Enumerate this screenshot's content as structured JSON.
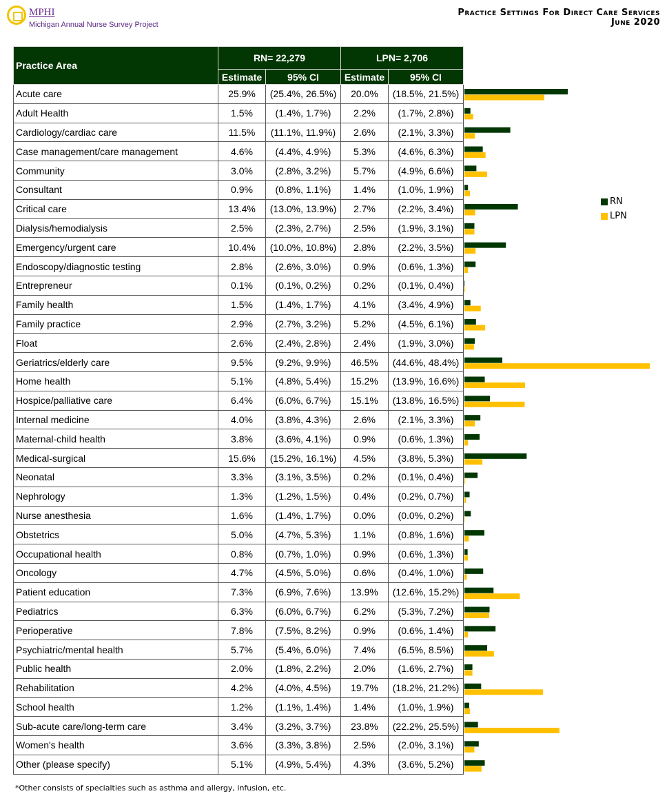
{
  "logo": {
    "brand": "MPHI",
    "subtitle": "Michigan Annual Nurse Survey Project"
  },
  "header": {
    "title": "Practice Settings For Direct Care Services",
    "date": "June 2020"
  },
  "colors": {
    "header_bg": "#023602",
    "RN": "#023602",
    "LPN": "#ffc000"
  },
  "table": {
    "col_practice": "Practice Area",
    "rn_group": "RN= 22,279",
    "lpn_group": "LPN= 2,706",
    "estimate": "Estimate",
    "ci": "95% CI"
  },
  "chart_data": {
    "type": "bar",
    "orientation": "horizontal",
    "legend_placement": "right",
    "series": [
      {
        "name": "RN",
        "values": [
          25.9,
          1.5,
          11.5,
          4.6,
          3.0,
          0.9,
          13.4,
          2.5,
          10.4,
          2.8,
          0.1,
          1.5,
          2.9,
          2.6,
          9.5,
          5.1,
          6.4,
          4.0,
          3.8,
          15.6,
          3.3,
          1.3,
          1.6,
          5.0,
          0.8,
          4.7,
          7.3,
          6.3,
          7.8,
          5.7,
          2.0,
          4.2,
          1.2,
          3.4,
          3.6,
          5.1
        ]
      },
      {
        "name": "LPN",
        "values": [
          20.0,
          2.2,
          2.6,
          5.3,
          5.7,
          1.4,
          2.7,
          2.5,
          2.8,
          0.9,
          0.2,
          4.1,
          5.2,
          2.4,
          46.5,
          15.2,
          15.1,
          2.6,
          0.9,
          4.5,
          0.2,
          0.4,
          0.0,
          1.1,
          0.9,
          0.6,
          13.9,
          6.2,
          0.9,
          7.4,
          2.0,
          19.7,
          1.4,
          23.8,
          2.5,
          4.3
        ]
      }
    ]
  },
  "rows": [
    [
      "Acute care",
      "25.9%",
      "(25.4%, 26.5%)",
      "20.0%",
      "(18.5%, 21.5%)"
    ],
    [
      "Adult Health",
      "1.5%",
      "(1.4%, 1.7%)",
      "2.2%",
      "(1.7%, 2.8%)"
    ],
    [
      "Cardiology/cardiac care",
      "11.5%",
      "(11.1%, 11.9%)",
      "2.6%",
      "(2.1%, 3.3%)"
    ],
    [
      "Case management/care management",
      "4.6%",
      "(4.4%, 4.9%)",
      "5.3%",
      "(4.6%, 6.3%)"
    ],
    [
      "Community",
      "3.0%",
      "(2.8%, 3.2%)",
      "5.7%",
      "(4.9%, 6.6%)"
    ],
    [
      "Consultant",
      "0.9%",
      "(0.8%, 1.1%)",
      "1.4%",
      "(1.0%, 1.9%)"
    ],
    [
      "Critical care",
      "13.4%",
      "(13.0%, 13.9%)",
      "2.7%",
      "(2.2%, 3.4%)"
    ],
    [
      "Dialysis/hemodialysis",
      "2.5%",
      "(2.3%, 2.7%)",
      "2.5%",
      "(1.9%, 3.1%)"
    ],
    [
      "Emergency/urgent care",
      "10.4%",
      "(10.0%, 10.8%)",
      "2.8%",
      "(2.2%, 3.5%)"
    ],
    [
      "Endoscopy/diagnostic testing",
      "2.8%",
      "(2.6%, 3.0%)",
      "0.9%",
      "(0.6%, 1.3%)"
    ],
    [
      "Entrepreneur",
      "0.1%",
      "(0.1%, 0.2%)",
      "0.2%",
      "(0.1%, 0.4%)"
    ],
    [
      "Family health",
      "1.5%",
      "(1.4%, 1.7%)",
      "4.1%",
      "(3.4%, 4.9%)"
    ],
    [
      "Family practice",
      "2.9%",
      "(2.7%, 3.2%)",
      "5.2%",
      "(4.5%, 6.1%)"
    ],
    [
      "Float",
      "2.6%",
      "(2.4%, 2.8%)",
      "2.4%",
      "(1.9%, 3.0%)"
    ],
    [
      "Geriatrics/elderly care",
      "9.5%",
      "(9.2%, 9.9%)",
      "46.5%",
      "(44.6%, 48.4%)"
    ],
    [
      "Home health",
      "5.1%",
      "(4.8%, 5.4%)",
      "15.2%",
      "(13.9%, 16.6%)"
    ],
    [
      "Hospice/palliative care",
      "6.4%",
      "(6.0%, 6.7%)",
      "15.1%",
      "(13.8%, 16.5%)"
    ],
    [
      "Internal medicine",
      "4.0%",
      "(3.8%, 4.3%)",
      "2.6%",
      "(2.1%, 3.3%)"
    ],
    [
      "Maternal-child health",
      "3.8%",
      "(3.6%, 4.1%)",
      "0.9%",
      "(0.6%, 1.3%)"
    ],
    [
      "Medical-surgical",
      "15.6%",
      "(15.2%, 16.1%)",
      "4.5%",
      "(3.8%, 5.3%)"
    ],
    [
      "Neonatal",
      "3.3%",
      "(3.1%, 3.5%)",
      "0.2%",
      "(0.1%, 0.4%)"
    ],
    [
      "Nephrology",
      "1.3%",
      "(1.2%, 1.5%)",
      "0.4%",
      "(0.2%, 0.7%)"
    ],
    [
      "Nurse anesthesia",
      "1.6%",
      "(1.4%, 1.7%)",
      "0.0%",
      "(0.0%, 0.2%)"
    ],
    [
      "Obstetrics",
      "5.0%",
      "(4.7%, 5.3%)",
      "1.1%",
      "(0.8%, 1.6%)"
    ],
    [
      "Occupational health",
      "0.8%",
      "(0.7%, 1.0%)",
      "0.9%",
      "(0.6%, 1.3%)"
    ],
    [
      "Oncology",
      "4.7%",
      "(4.5%, 5.0%)",
      "0.6%",
      "(0.4%, 1.0%)"
    ],
    [
      "Patient education",
      "7.3%",
      "(6.9%, 7.6%)",
      "13.9%",
      "(12.6%, 15.2%)"
    ],
    [
      "Pediatrics",
      "6.3%",
      "(6.0%, 6.7%)",
      "6.2%",
      "(5.3%, 7.2%)"
    ],
    [
      "Perioperative",
      "7.8%",
      "(7.5%, 8.2%)",
      "0.9%",
      "(0.6%, 1.4%)"
    ],
    [
      "Psychiatric/mental health",
      "5.7%",
      "(5.4%, 6.0%)",
      "7.4%",
      "(6.5%, 8.5%)"
    ],
    [
      "Public health",
      "2.0%",
      "(1.8%, 2.2%)",
      "2.0%",
      "(1.6%, 2.7%)"
    ],
    [
      "Rehabilitation",
      "4.2%",
      "(4.0%, 4.5%)",
      "19.7%",
      "(18.2%, 21.2%)"
    ],
    [
      "School health",
      "1.2%",
      "(1.1%, 1.4%)",
      "1.4%",
      "(1.0%, 1.9%)"
    ],
    [
      "Sub-acute care/long-term care",
      "3.4%",
      "(3.2%, 3.7%)",
      "23.8%",
      "(22.2%, 25.5%)"
    ],
    [
      "Women's health",
      "3.6%",
      "(3.3%, 3.8%)",
      "2.5%",
      "(2.0%, 3.1%)"
    ],
    [
      "Other (please specify)",
      "5.1%",
      "(4.9%, 5.4%)",
      "4.3%",
      "(3.6%, 5.2%)"
    ]
  ],
  "footnote": "*Other consists of specialties such as asthma and allergy, infusion,  etc."
}
